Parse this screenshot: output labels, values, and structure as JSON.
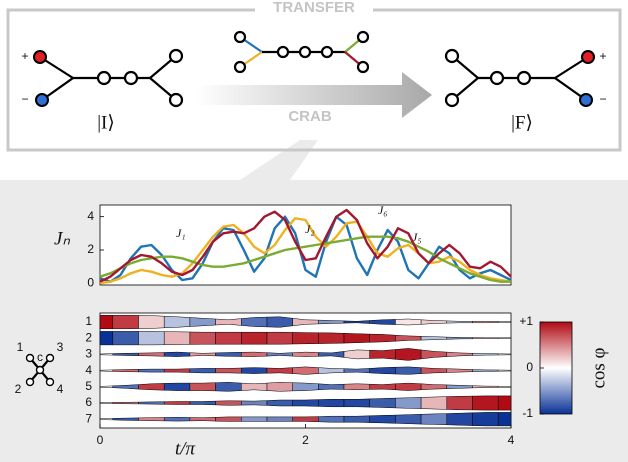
{
  "diagram": {
    "title": "TRANSFER",
    "method": "CRAB",
    "initial_state": "|I⟩",
    "final_state": "|F⟩",
    "initial_signs": [
      "+",
      "−"
    ],
    "final_signs": [
      "+",
      "−"
    ]
  },
  "node_key": {
    "labels": [
      "1",
      "2",
      "3",
      "4",
      "c"
    ]
  },
  "chart_data": [
    {
      "type": "line",
      "ylabel": "Jₙ",
      "xlim": [
        0,
        4
      ],
      "ylim": [
        -0.1,
        4.7
      ],
      "yticks": [
        0,
        2,
        4
      ],
      "x": [
        0,
        0.1,
        0.2,
        0.3,
        0.4,
        0.5,
        0.6,
        0.7,
        0.8,
        0.9,
        1,
        1.1,
        1.2,
        1.3,
        1.4,
        1.5,
        1.6,
        1.7,
        1.8,
        1.9,
        2,
        2.1,
        2.2,
        2.3,
        2.4,
        2.5,
        2.6,
        2.7,
        2.8,
        2.9,
        3,
        3.1,
        3.2,
        3.3,
        3.4,
        3.5,
        3.6,
        3.7,
        3.8,
        3.9,
        4
      ],
      "series": [
        {
          "name": "J₁",
          "color": "#1f74b5",
          "values": [
            0.3,
            0.1,
            0.5,
            1.5,
            2.2,
            2.3,
            1.7,
            0.8,
            0.2,
            0.3,
            1.2,
            2.5,
            3.3,
            3.2,
            2.0,
            0.7,
            1.5,
            3.3,
            4.0,
            3.0,
            0.8,
            0.4,
            2.5,
            4.0,
            3.5,
            1.5,
            0.5,
            2.0,
            3.2,
            2.5,
            0.8,
            0.3,
            1.2,
            2.2,
            1.8,
            0.8,
            0.3,
            0.6,
            0.8,
            0.5,
            0.2
          ]
        },
        {
          "name": "J₂",
          "color": "#efb120",
          "values": [
            0,
            0.1,
            0.3,
            0.6,
            0.8,
            0.7,
            0.5,
            0.4,
            0.6,
            1.2,
            2.0,
            2.8,
            3.4,
            3.5,
            3.0,
            2.2,
            1.8,
            2.3,
            3.2,
            3.9,
            3.8,
            2.8,
            2.2,
            2.8,
            3.6,
            3.7,
            2.8,
            1.8,
            1.6,
            2.1,
            2.3,
            1.8,
            1.2,
            1.3,
            1.6,
            1.3,
            0.8,
            0.5,
            0.3,
            0.2,
            0.1
          ]
        },
        {
          "name": "J₅",
          "color": "#7aab32",
          "values": [
            0.4,
            0.6,
            0.9,
            1.2,
            1.4,
            1.5,
            1.6,
            1.6,
            1.5,
            1.3,
            1.1,
            1.0,
            1.0,
            1.1,
            1.2,
            1.4,
            1.6,
            1.8,
            2.0,
            2.1,
            2.2,
            2.3,
            2.4,
            2.5,
            2.6,
            2.7,
            2.8,
            2.8,
            2.8,
            2.7,
            2.5,
            2.2,
            1.9,
            1.5,
            1.2,
            0.9,
            0.6,
            0.4,
            0.2,
            0.1,
            0.1
          ]
        },
        {
          "name": "J₆",
          "color": "#a3172f",
          "values": [
            0.1,
            0.4,
            0.9,
            1.4,
            1.7,
            1.6,
            1.2,
            0.7,
            0.5,
            0.8,
            1.6,
            2.5,
            3.0,
            3.1,
            3.0,
            3.3,
            4.0,
            4.3,
            3.8,
            2.5,
            1.4,
            1.5,
            2.8,
            4.0,
            4.4,
            3.8,
            2.4,
            1.5,
            2.2,
            3.3,
            3.0,
            1.8,
            1.2,
            1.8,
            2.3,
            1.8,
            1.0,
            0.9,
            1.3,
            1.0,
            0.4
          ]
        }
      ]
    },
    {
      "type": "ribbon",
      "xlabel": "t/π",
      "xlim": [
        0,
        4
      ],
      "xticks": [
        0,
        2,
        4
      ],
      "x": [
        0,
        0.25,
        0.5,
        0.75,
        1,
        1.25,
        1.5,
        1.75,
        2,
        2.25,
        2.5,
        2.75,
        3,
        3.25,
        3.5,
        3.75,
        4
      ],
      "colorbar": {
        "label": "cos φ",
        "clim": [
          -1,
          1
        ],
        "ticks": [
          {
            "value": 1,
            "label": "+1"
          },
          0,
          -1
        ]
      },
      "rows": [
        {
          "label": "1",
          "population": [
            0.9,
            0.9,
            0.85,
            0.7,
            0.5,
            0.3,
            0.6,
            0.7,
            0.3,
            0.2,
            0.1,
            0.3,
            0.4,
            0.2,
            0.1,
            0.1,
            0.05
          ],
          "cos": [
            1,
            0.8,
            0.2,
            -0.3,
            -0.5,
            0.3,
            -0.7,
            -0.8,
            0.3,
            -0.5,
            -0.9,
            -0.9,
            0.1,
            0.2,
            -0.2,
            0.3,
            0
          ]
        },
        {
          "label": "2",
          "population": [
            0.9,
            0.9,
            0.9,
            0.85,
            0.8,
            0.8,
            0.8,
            0.8,
            0.75,
            0.7,
            0.6,
            0.5,
            0.3,
            0.2,
            0.1,
            0.05,
            0.05
          ],
          "cos": [
            -1,
            -0.8,
            -0.3,
            0.3,
            0.7,
            0.8,
            0.9,
            0.8,
            0.9,
            0.9,
            0.95,
            0.9,
            0.7,
            -0.3,
            -0.5,
            0.2,
            0
          ]
        },
        {
          "label": "3",
          "population": [
            0.05,
            0.15,
            0.2,
            0.3,
            0.15,
            0.25,
            0.3,
            0.15,
            0.3,
            0.2,
            0.6,
            0.5,
            0.8,
            0.4,
            0.2,
            0.1,
            0.05
          ],
          "cos": [
            0,
            -0.8,
            0.6,
            -0.9,
            0.4,
            -0.8,
            0.6,
            -0.6,
            0.5,
            -0.8,
            0.2,
            0.9,
            0.95,
            0.7,
            0.5,
            -0.3,
            0
          ]
        },
        {
          "label": "4",
          "population": [
            0.05,
            0.15,
            0.2,
            0.2,
            0.3,
            0.3,
            0.4,
            0.3,
            0.5,
            0.3,
            0.2,
            0.4,
            0.5,
            0.3,
            0.2,
            0.1,
            0.05
          ],
          "cos": [
            0,
            0.6,
            -0.7,
            0.8,
            -0.8,
            0.7,
            -0.9,
            0.8,
            0.6,
            -0.3,
            -0.7,
            -0.9,
            -0.8,
            0.7,
            0.5,
            -0.4,
            0
          ]
        },
        {
          "label": "5",
          "population": [
            0.05,
            0.2,
            0.4,
            0.5,
            0.5,
            0.6,
            0.4,
            0.6,
            0.5,
            0.3,
            0.4,
            0.3,
            0.5,
            0.3,
            0.2,
            0.1,
            0.05
          ],
          "cos": [
            0,
            -0.7,
            0.8,
            -0.9,
            0.7,
            -0.8,
            0.3,
            0.4,
            -0.5,
            -0.7,
            0.5,
            0.8,
            0.8,
            0.6,
            -0.5,
            0.3,
            0
          ]
        },
        {
          "label": "6",
          "population": [
            0.05,
            0.1,
            0.15,
            0.2,
            0.2,
            0.3,
            0.25,
            0.4,
            0.4,
            0.5,
            0.5,
            0.6,
            0.7,
            0.8,
            0.9,
            0.95,
            0.95
          ],
          "cos": [
            0,
            0.5,
            -0.7,
            0.8,
            -0.8,
            0.7,
            -0.6,
            -0.8,
            -0.9,
            -0.9,
            -0.9,
            -0.8,
            -0.5,
            0.3,
            0.8,
            0.95,
            1
          ]
        },
        {
          "label": "7",
          "population": [
            0.05,
            0.15,
            0.2,
            0.25,
            0.2,
            0.3,
            0.3,
            0.3,
            0.3,
            0.4,
            0.4,
            0.5,
            0.6,
            0.7,
            0.8,
            0.9,
            0.9
          ],
          "cos": [
            0,
            -0.8,
            0.5,
            -0.7,
            0.6,
            0.7,
            -0.5,
            -0.6,
            0.8,
            -0.7,
            -0.8,
            -0.9,
            -0.8,
            -0.6,
            -0.9,
            -0.95,
            -1
          ]
        }
      ]
    }
  ]
}
